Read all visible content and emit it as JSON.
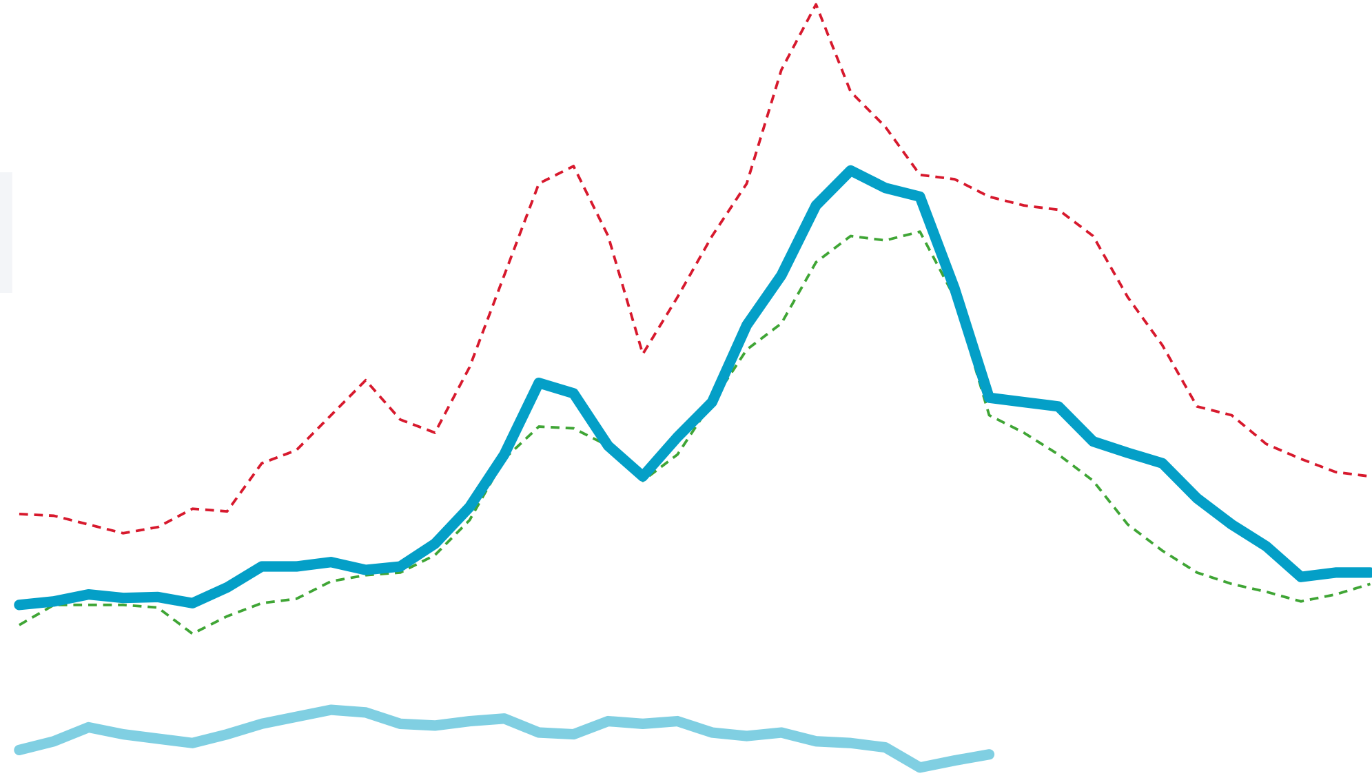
{
  "chart_data": {
    "type": "line",
    "x": [
      0,
      1,
      2,
      3,
      4,
      5,
      6,
      7,
      8,
      9,
      10,
      11,
      12,
      13,
      14,
      15,
      16,
      17,
      18,
      19,
      20,
      21,
      22,
      23,
      24,
      25,
      26,
      27,
      28,
      29,
      30,
      31,
      32,
      33,
      34,
      35,
      36,
      37,
      38,
      39
    ],
    "xlim": [
      0,
      39
    ],
    "ylim": [
      0,
      890
    ],
    "series": [
      {
        "color": "#d7192d",
        "dash": true,
        "width": 3,
        "values": [
          302,
          300,
          290,
          280,
          287,
          308,
          305,
          360,
          375,
          415,
          455,
          410,
          395,
          470,
          575,
          680,
          700,
          620,
          485,
          550,
          620,
          680,
          810,
          885,
          785,
          745,
          690,
          685,
          665,
          655,
          650,
          620,
          550,
          495,
          425,
          415,
          382,
          365,
          350,
          345
        ]
      },
      {
        "color": "#3fa535",
        "dash": true,
        "width": 3,
        "values": [
          175,
          198,
          198,
          198,
          195,
          165,
          185,
          200,
          205,
          225,
          232,
          235,
          255,
          295,
          365,
          402,
          400,
          380,
          340,
          370,
          430,
          490,
          520,
          590,
          620,
          615,
          625,
          550,
          415,
          395,
          370,
          340,
          290,
          260,
          235,
          222,
          213,
          202,
          210,
          222
        ]
      },
      {
        "color": "#80cfe2",
        "dash": false,
        "width": 12,
        "values": [
          32,
          42,
          58,
          50,
          45,
          40,
          50,
          62,
          70,
          78,
          75,
          62,
          60,
          65,
          68,
          52,
          50,
          65,
          62,
          65,
          52,
          48,
          52,
          42,
          40,
          35,
          12,
          20,
          27,
          null,
          null,
          null,
          null,
          null,
          null,
          null,
          null,
          null,
          null,
          null
        ]
      },
      {
        "color": "#049fc7",
        "dash": false,
        "width": 12,
        "values": [
          198,
          202,
          210,
          206,
          207,
          200,
          218,
          242,
          242,
          247,
          238,
          242,
          268,
          310,
          370,
          452,
          440,
          380,
          345,
          390,
          430,
          518,
          575,
          655,
          695,
          675,
          665,
          560,
          435,
          430,
          425,
          385,
          372,
          360,
          320,
          290,
          265,
          230,
          235,
          235
        ]
      }
    ]
  }
}
